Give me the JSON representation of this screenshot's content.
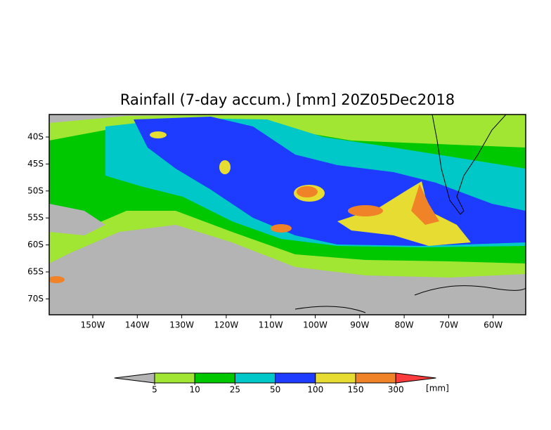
{
  "map": {
    "title": "Rainfall (7-day accum.) [mm] 20Z05Dec2018",
    "lat_labels": [
      "40S",
      "45S",
      "50S",
      "55S",
      "60S",
      "65S",
      "70S"
    ],
    "lon_labels": [
      "150W",
      "140W",
      "130W",
      "120W",
      "110W",
      "100W",
      "90W",
      "80W",
      "70W",
      "60W"
    ],
    "colorbar": {
      "levels": [
        5,
        10,
        25,
        50,
        100,
        150,
        300
      ],
      "colors": [
        "#b4b4b4",
        "#a0e632",
        "#00c800",
        "#00c8c8",
        "#1e3cff",
        "#e6dc32",
        "#f08228",
        "#fa3c3c"
      ],
      "unit": "[mm]"
    }
  }
}
